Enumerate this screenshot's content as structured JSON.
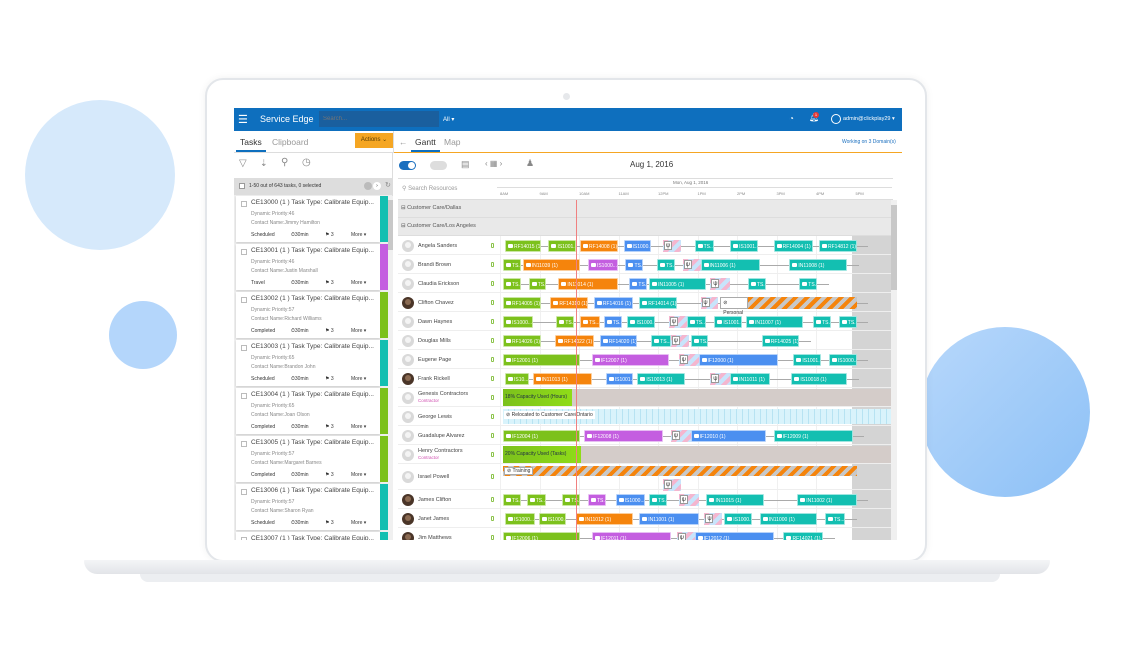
{
  "header": {
    "app_title": "Service Edge",
    "search_placeholder": "Search...",
    "scope": "All ▾",
    "user": "admin@clickplay29 ▾",
    "notification_count": "1"
  },
  "tabs": {
    "left": [
      "Tasks",
      "Clipboard"
    ],
    "actions": "Actions ⌄",
    "back": "←",
    "right": [
      "Gantt",
      "Map"
    ],
    "domains": "Working on 3 Domain(s)"
  },
  "task_list": {
    "count": "1-50 out of 643 tasks, 0 selected",
    "items": [
      {
        "title": "CE13000 (1 ) Task Type: Calibrate Equip...",
        "priority": "Dynamic Priority:46",
        "contact": "Contact Name:Jimmy Hamilton",
        "status": "Scheduled",
        "duration": "⏱30min",
        "flags": "⚑ 3",
        "more": "More ▾",
        "color": "#13bfb1"
      },
      {
        "title": "CE13001 (1 ) Task Type: Calibrate Equip...",
        "priority": "Dynamic Priority:46",
        "contact": "Contact Name:Justin Marshall",
        "status": "Travel",
        "duration": "⏱30min",
        "flags": "⚑ 3",
        "more": "More ▾",
        "color": "#c45ee0"
      },
      {
        "title": "CE13002 (1 ) Task Type: Calibrate Equip...",
        "priority": "Dynamic Priority:57",
        "contact": "Contact Name:Richard Williams",
        "status": "Completed",
        "duration": "⏱30min",
        "flags": "⚑ 3",
        "more": "More ▾",
        "color": "#7cc11c"
      },
      {
        "title": "CE13003 (1 ) Task Type: Calibrate Equip...",
        "priority": "Dynamic Priority:65",
        "contact": "Contact Name:Brandon John",
        "status": "Scheduled",
        "duration": "⏱30min",
        "flags": "⚑ 3",
        "more": "More ▾",
        "color": "#13bfb1"
      },
      {
        "title": "CE13004 (1 ) Task Type: Calibrate Equip...",
        "priority": "Dynamic Priority:65",
        "contact": "Contact Name:Joan Olson",
        "status": "Completed",
        "duration": "⏱30min",
        "flags": "⚑ 3",
        "more": "More ▾",
        "color": "#7cc11c"
      },
      {
        "title": "CE13005 (1 ) Task Type: Calibrate Equip...",
        "priority": "Dynamic Priority:57",
        "contact": "Contact Name:Margaret Barnes",
        "status": "Completed",
        "duration": "⏱30min",
        "flags": "⚑ 3",
        "more": "More ▾",
        "color": "#7cc11c"
      },
      {
        "title": "CE13006 (1 ) Task Type: Calibrate Equip...",
        "priority": "Dynamic Priority:57",
        "contact": "Contact Name:Sharon Ryan",
        "status": "Scheduled",
        "duration": "⏱30min",
        "flags": "⚑ 3",
        "more": "More ▾",
        "color": "#13bfb1"
      },
      {
        "title": "CE13007 (1 ) Task Type: Calibrate Equip...",
        "priority": "",
        "contact": "",
        "status": "",
        "duration": "",
        "flags": "",
        "more": "",
        "color": "#13bfb1"
      }
    ]
  },
  "gantt": {
    "date": "Aug 1, 2016",
    "search_placeholder": "Search Resources",
    "day_label": "Mon, Aug 1, 2016",
    "ticks": [
      "8AM",
      "9AM",
      "10AM",
      "11AM",
      "12PM",
      "1PM",
      "2PM",
      "3PM",
      "4PM",
      "5PM"
    ],
    "now_hour": 9.92,
    "colors": {
      "green": "#7cc11c",
      "orange": "#f5840c",
      "purple": "#c45ee0",
      "blue": "#4b8ff0",
      "teal": "#13bfb1"
    },
    "groups": [
      "Customer Care/Dallas",
      "Customer Care/Los Angeles"
    ],
    "resources": [
      {
        "name": "Angela Sanders",
        "bars": [
          [
            "RF14015 (1)",
            "green",
            8,
            8.9
          ],
          [
            "IS1001...",
            "green",
            9.1,
            9.8
          ],
          [
            "RF14008 (1)",
            "orange",
            9.9,
            10.85
          ],
          [
            "IS1000...",
            "blue",
            11,
            11.7
          ],
          [
            "",
            "break",
            12,
            12.45
          ],
          [
            "TS...",
            "teal",
            12.8,
            13.3
          ],
          [
            "IS1001...",
            "teal",
            13.7,
            14.4
          ],
          [
            "RF14004 (1)",
            "teal",
            14.8,
            15.8
          ],
          [
            "RF14812 (1)",
            "teal",
            15.95,
            16.9
          ]
        ]
      },
      {
        "name": "Brandi Brown",
        "bars": [
          [
            "TS...",
            "green",
            7.95,
            8.4
          ],
          [
            "IN11039 (1)",
            "orange",
            8.45,
            9.9
          ],
          [
            "IS1000...",
            "purple",
            10.1,
            10.85
          ],
          [
            "TS...",
            "blue",
            11.05,
            11.5
          ],
          [
            "TS...",
            "teal",
            11.85,
            12.3
          ],
          [
            "",
            "break",
            12.5,
            12.95
          ],
          [
            "IN11006 (1)",
            "teal",
            12.95,
            14.45
          ],
          [
            "IN11008 (1)",
            "teal",
            15.2,
            16.65
          ]
        ]
      },
      {
        "name": "Claudia Erickson",
        "bars": [
          [
            "TS...",
            "green",
            7.95,
            8.4
          ],
          [
            "TS...",
            "green",
            8.6,
            9.05
          ],
          [
            "IN11014 (1)",
            "orange",
            9.35,
            10.85
          ],
          [
            "TS...",
            "blue",
            11.15,
            11.6
          ],
          [
            "IN11005 (1)",
            "teal",
            11.65,
            13.1
          ],
          [
            "",
            "break",
            13.2,
            13.7
          ],
          [
            "TS...",
            "teal",
            14.15,
            14.6
          ],
          [
            "TS...",
            "teal",
            15.45,
            15.9
          ]
        ]
      },
      {
        "name": "Clifton Chavez",
        "photo": true,
        "bars": [
          [
            "RF14005 (1)",
            "green",
            7.95,
            8.9
          ],
          [
            "RF14310 (1)",
            "orange",
            9.15,
            10.1
          ],
          [
            "RF14016 (1)",
            "blue",
            10.25,
            11.25
          ],
          [
            "RF14014 (1)",
            "teal",
            11.4,
            12.35
          ],
          [
            "",
            "break",
            12.95,
            13.4
          ],
          [
            "⊘ Personal",
            "label",
            13.45,
            14.15
          ],
          [
            "",
            "stripes",
            14.15,
            16.9
          ]
        ]
      },
      {
        "name": "Dawn Haynes",
        "bars": [
          [
            "IS1000...",
            "green",
            7.95,
            8.7
          ],
          [
            "TS...",
            "green",
            9.3,
            9.75
          ],
          [
            "TS...",
            "orange",
            9.9,
            10.4
          ],
          [
            "TS...",
            "blue",
            10.5,
            10.95
          ],
          [
            "IS1000...",
            "teal",
            11.1,
            11.8
          ],
          [
            "",
            "break",
            12.15,
            12.6
          ],
          [
            "TS...",
            "teal",
            12.6,
            13.1
          ],
          [
            "IS1001...",
            "teal",
            13.3,
            14
          ],
          [
            "IN11007 (1)",
            "teal",
            14.1,
            15.55
          ],
          [
            "TS...",
            "teal",
            15.8,
            16.25
          ],
          [
            "TS...",
            "teal",
            16.45,
            16.9
          ]
        ]
      },
      {
        "name": "Douglas Mills",
        "bars": [
          [
            "RF14026 (1)",
            "green",
            7.95,
            8.9
          ],
          [
            "RF14022 (1)",
            "orange",
            9.27,
            10.25
          ],
          [
            "RF14020 (1)",
            "blue",
            10.4,
            11.35
          ],
          [
            "TS...",
            "teal",
            11.7,
            12.2
          ],
          [
            "",
            "break",
            12.2,
            12.65
          ],
          [
            "TS...",
            "teal",
            12.7,
            13.15
          ],
          [
            "RF14025 (1)",
            "teal",
            14.5,
            15.45
          ]
        ]
      },
      {
        "name": "Eugene Page",
        "bars": [
          [
            "IF12001 (1)",
            "green",
            7.95,
            9.9
          ],
          [
            "IF12007 (1)",
            "purple",
            10.2,
            12.15
          ],
          [
            "",
            "break",
            12.4,
            12.9
          ],
          [
            "IF12000 (1)",
            "blue",
            12.9,
            14.9
          ],
          [
            "IS1001...",
            "teal",
            15.3,
            16
          ],
          [
            "IS1000...",
            "teal",
            16.2,
            16.9
          ]
        ]
      },
      {
        "name": "Frank Rickell",
        "photo": true,
        "bars": [
          [
            "IS10...",
            "green",
            8,
            8.6
          ],
          [
            "IN11013 (1)",
            "orange",
            8.7,
            10.2
          ],
          [
            "IS1001...",
            "blue",
            10.55,
            11.25
          ],
          [
            "IS10013 (1)",
            "teal",
            11.35,
            12.55
          ],
          [
            "",
            "break",
            13.2,
            13.7
          ],
          [
            "IN11011 (1)",
            "teal",
            13.7,
            14.7
          ],
          [
            "IS10018 (1)",
            "teal",
            15.25,
            16.65
          ]
        ]
      },
      {
        "name": "Genesis Contractors",
        "sub": "Contractor",
        "capacity": "18% Capacity Used (Hours)",
        "capacity_end": 9.7
      },
      {
        "name": "George Lewis",
        "relocated": "⊘ Relocated to Customer Care/Ontario"
      },
      {
        "name": "Guadalupe Alvarez",
        "bars": [
          [
            "IF12004 (1)",
            "green",
            7.95,
            9.9
          ],
          [
            "IF12008 (1)",
            "purple",
            10,
            12
          ],
          [
            "",
            "break",
            12.2,
            12.7
          ],
          [
            "IF12010 (1)",
            "blue",
            12.7,
            14.6
          ],
          [
            "IF12009 (1)",
            "teal",
            14.8,
            16.8
          ]
        ]
      },
      {
        "name": "Henry Contractors",
        "sub": "Contractor",
        "capacity": "20% Capacity Used (Tasks)",
        "capacity_end": 9.92
      },
      {
        "name": "Israel Powell",
        "tall": true,
        "training": "⊘ Training",
        "bars": [
          [
            "",
            "break",
            12,
            12.45
          ]
        ]
      },
      {
        "name": "James Clifton",
        "photo": true,
        "bars": [
          [
            "TS...",
            "green",
            7.95,
            8.4
          ],
          [
            "TS...",
            "green",
            8.55,
            9.05
          ],
          [
            "TS...",
            "green",
            9.45,
            9.9
          ],
          [
            "TS...",
            "purple",
            10.1,
            10.55
          ],
          [
            "IS1000...",
            "blue",
            10.8,
            11.55
          ],
          [
            "TS...",
            "teal",
            11.65,
            12.1
          ],
          [
            "",
            "break",
            12.4,
            12.9
          ],
          [
            "IN11015 (1)",
            "teal",
            13.1,
            14.55
          ],
          [
            "IN11002 (1)",
            "teal",
            15.4,
            16.9
          ]
        ]
      },
      {
        "name": "Janet James",
        "photo": true,
        "bars": [
          [
            "IS1000...",
            "green",
            8,
            8.75
          ],
          [
            "IS1000...",
            "green",
            8.85,
            9.55
          ],
          [
            "IN11012 (1)",
            "orange",
            9.8,
            11.25
          ],
          [
            "IN11001 (1)",
            "blue",
            11.4,
            12.9
          ],
          [
            "",
            "break",
            13.05,
            13.5
          ],
          [
            "IS1000...",
            "teal",
            13.55,
            14.25
          ],
          [
            "IN11000 (1)",
            "teal",
            14.45,
            15.9
          ],
          [
            "TS...",
            "teal",
            16.1,
            16.6
          ]
        ]
      },
      {
        "name": "Jim Matthews",
        "photo": true,
        "bars": [
          [
            "IF12006 (1)",
            "green",
            7.95,
            9.9
          ],
          [
            "IF12011 (1)",
            "purple",
            10.2,
            12.2
          ],
          [
            "",
            "break",
            12.35,
            12.8
          ],
          [
            "IF12012 (1)",
            "blue",
            12.8,
            14.8
          ],
          [
            "RF14021 (1)",
            "teal",
            15.05,
            16.05
          ]
        ]
      }
    ]
  }
}
